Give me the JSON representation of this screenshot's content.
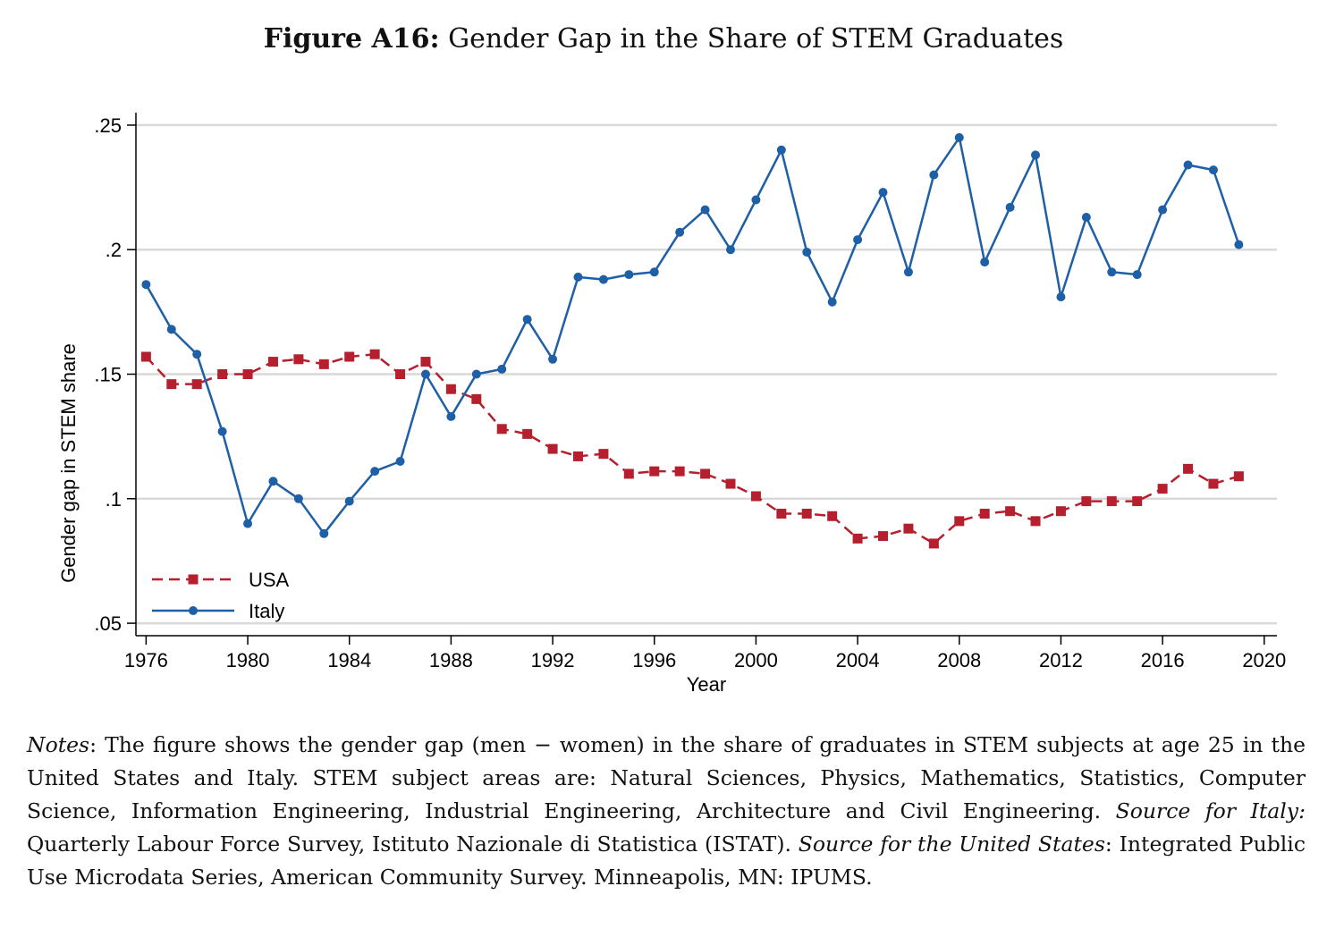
{
  "figure": {
    "label": "Figure A16:",
    "title": "Gender Gap in the Share of STEM Graduates"
  },
  "chart_data": {
    "type": "line",
    "xlabel": "Year",
    "ylabel": "Gender gap in STEM share",
    "xlim": [
      1975.6,
      2020.5
    ],
    "ylim": [
      0.045,
      0.255
    ],
    "xticks": [
      1976,
      1980,
      1984,
      1988,
      1992,
      1996,
      2000,
      2004,
      2008,
      2012,
      2016,
      2020
    ],
    "yticks": [
      0.05,
      0.1,
      0.15,
      0.2,
      0.25
    ],
    "ytick_labels": [
      ".05",
      ".1",
      ".15",
      ".2",
      ".25"
    ],
    "grid": true,
    "legend_position": "bottom-left",
    "x": [
      1976,
      1977,
      1978,
      1979,
      1980,
      1981,
      1982,
      1983,
      1984,
      1985,
      1986,
      1987,
      1988,
      1989,
      1990,
      1991,
      1992,
      1993,
      1994,
      1995,
      1996,
      1997,
      1998,
      1999,
      2000,
      2001,
      2002,
      2003,
      2004,
      2005,
      2006,
      2007,
      2008,
      2009,
      2010,
      2011,
      2012,
      2013,
      2014,
      2015,
      2016,
      2017,
      2018,
      2019
    ],
    "series": [
      {
        "name": "USA",
        "color": "#b51f2e",
        "marker": "square",
        "dash": "dashed",
        "values": [
          0.157,
          0.146,
          0.146,
          0.15,
          0.15,
          0.155,
          0.156,
          0.154,
          0.157,
          0.158,
          0.15,
          0.155,
          0.144,
          0.14,
          0.128,
          0.126,
          0.12,
          0.117,
          0.118,
          0.11,
          0.111,
          0.111,
          0.11,
          0.106,
          0.101,
          0.094,
          0.094,
          0.093,
          0.084,
          0.085,
          0.088,
          0.082,
          0.091,
          0.094,
          0.095,
          0.091,
          0.095,
          0.099,
          0.099,
          0.099,
          0.104,
          0.112,
          0.106,
          0.109
        ]
      },
      {
        "name": "Italy",
        "color": "#1f5fa6",
        "marker": "circle",
        "dash": "solid",
        "values": [
          0.186,
          0.168,
          0.158,
          0.127,
          0.09,
          0.107,
          0.1,
          0.086,
          0.099,
          0.111,
          0.115,
          0.15,
          0.133,
          0.15,
          0.152,
          0.172,
          0.156,
          0.189,
          0.188,
          0.19,
          0.191,
          0.207,
          0.216,
          0.2,
          0.22,
          0.24,
          0.199,
          0.179,
          0.204,
          0.223,
          0.191,
          0.23,
          0.245,
          0.195,
          0.217,
          0.238,
          0.181,
          0.213,
          0.191,
          0.19,
          0.216,
          0.234,
          0.232,
          0.202
        ]
      }
    ]
  },
  "notes": {
    "notes_label": "Notes",
    "notes_text": ": The figure shows the gender gap (men − women) in the share of graduates in STEM subjects at age 25 in the United States and Italy. STEM subject areas are: Natural Sciences, Physics, Mathematics, Statistics, Computer Science, Information Engineering, Industrial Engineering, Architecture and Civil Engineering.",
    "source_italy_label": "Source for Italy:",
    "source_italy_text": " Quarterly Labour Force Survey, Istituto Nazionale di Statistica (ISTAT). ",
    "source_us_label": "Source for the United States",
    "source_us_text": ": Integrated Public Use Microdata Series, American Community Survey. Minneapolis, MN: IPUMS."
  }
}
